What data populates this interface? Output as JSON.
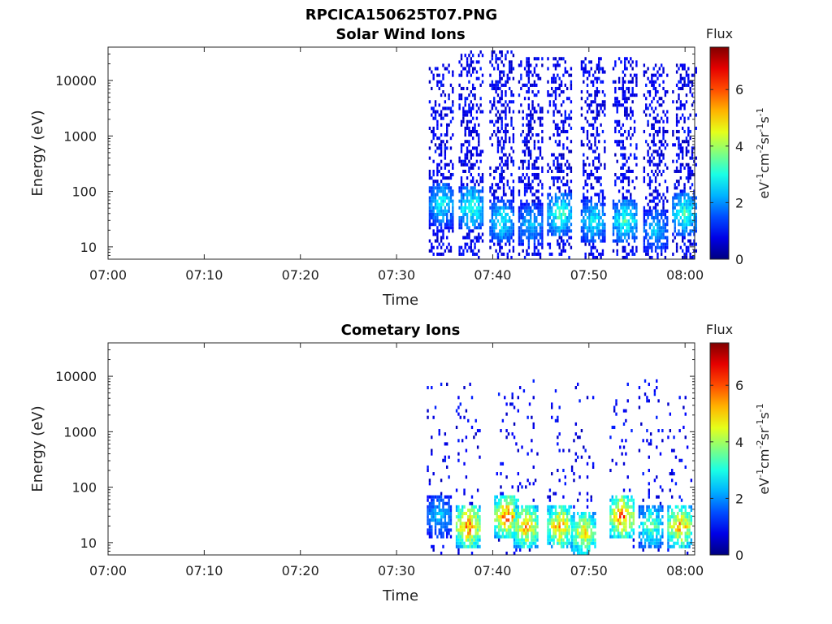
{
  "figure": {
    "filename": "RPCICA150625T07.PNG"
  },
  "colorbar": {
    "title": "Flux",
    "ticks": [
      "0",
      "2",
      "4",
      "6"
    ],
    "range": [
      0,
      7.5
    ],
    "unit_parts": [
      "eV",
      "-1",
      "cm",
      "-2",
      "sr",
      "-1",
      "s",
      "-1"
    ],
    "colormap": "jet"
  },
  "chart_data": [
    {
      "type": "heatmap",
      "title": "Solar Wind Ions",
      "xlabel": "Time",
      "ylabel": "Energy (eV)",
      "x_ticks": [
        "07:00",
        "07:10",
        "07:20",
        "07:30",
        "07:40",
        "07:50",
        "08:00"
      ],
      "xlim_minutes": [
        0,
        61
      ],
      "y_ticks": [
        "10",
        "100",
        "1000",
        "10000"
      ],
      "ylim": [
        6,
        40000
      ],
      "yscale": "log",
      "bursts": [
        {
          "t": 34.7,
          "e_lo": 7,
          "e_hi": 20000,
          "peak_e": 60,
          "peak_flux": 3.5,
          "low_flux": 1.0
        },
        {
          "t": 37.8,
          "e_lo": 6,
          "e_hi": 35000,
          "peak_e": 50,
          "peak_flux": 4.0,
          "low_flux": 1.0
        },
        {
          "t": 41.0,
          "e_lo": 6,
          "e_hi": 35000,
          "peak_e": 30,
          "peak_flux": 3.5,
          "low_flux": 1.0
        },
        {
          "t": 44.0,
          "e_lo": 6,
          "e_hi": 25000,
          "peak_e": 25,
          "peak_flux": 3.0,
          "low_flux": 1.0
        },
        {
          "t": 47.0,
          "e_lo": 6,
          "e_hi": 25000,
          "peak_e": 40,
          "peak_flux": 4.0,
          "low_flux": 1.0
        },
        {
          "t": 50.5,
          "e_lo": 6,
          "e_hi": 25000,
          "peak_e": 30,
          "peak_flux": 3.5,
          "low_flux": 1.0
        },
        {
          "t": 53.8,
          "e_lo": 6,
          "e_hi": 25000,
          "peak_e": 30,
          "peak_flux": 4.0,
          "low_flux": 1.0
        },
        {
          "t": 57.0,
          "e_lo": 6,
          "e_hi": 20000,
          "peak_e": 20,
          "peak_flux": 3.0,
          "low_flux": 1.0
        },
        {
          "t": 60.0,
          "e_lo": 6,
          "e_hi": 20000,
          "peak_e": 40,
          "peak_flux": 4.0,
          "low_flux": 1.0
        }
      ]
    },
    {
      "type": "heatmap",
      "title": "Cometary Ions",
      "xlabel": "Time",
      "ylabel": "Energy (eV)",
      "x_ticks": [
        "07:00",
        "07:10",
        "07:20",
        "07:30",
        "07:40",
        "07:50",
        "08:00"
      ],
      "xlim_minutes": [
        0,
        61
      ],
      "y_ticks": [
        "10",
        "100",
        "1000",
        "10000"
      ],
      "ylim": [
        6,
        40000
      ],
      "yscale": "log",
      "bursts": [
        {
          "t": 34.5,
          "e_lo": 6,
          "e_hi": 8000,
          "peak_e": 30,
          "peak_flux": 3.0,
          "low_flux": 1.0
        },
        {
          "t": 37.5,
          "e_lo": 6,
          "e_hi": 8000,
          "peak_e": 20,
          "peak_flux": 7.0,
          "low_flux": 1.0
        },
        {
          "t": 41.5,
          "e_lo": 6,
          "e_hi": 6000,
          "peak_e": 30,
          "peak_flux": 7.0,
          "low_flux": 1.0
        },
        {
          "t": 43.5,
          "e_lo": 6,
          "e_hi": 9000,
          "peak_e": 20,
          "peak_flux": 6.5,
          "low_flux": 1.0
        },
        {
          "t": 47.0,
          "e_lo": 6,
          "e_hi": 6000,
          "peak_e": 20,
          "peak_flux": 6.5,
          "low_flux": 1.0
        },
        {
          "t": 49.5,
          "e_lo": 6,
          "e_hi": 9000,
          "peak_e": 15,
          "peak_flux": 6.0,
          "low_flux": 1.0
        },
        {
          "t": 53.5,
          "e_lo": 6,
          "e_hi": 8000,
          "peak_e": 30,
          "peak_flux": 7.0,
          "low_flux": 1.0
        },
        {
          "t": 56.5,
          "e_lo": 6,
          "e_hi": 10000,
          "peak_e": 20,
          "peak_flux": 4.5,
          "low_flux": 1.0
        },
        {
          "t": 59.5,
          "e_lo": 6,
          "e_hi": 6000,
          "peak_e": 20,
          "peak_flux": 6.5,
          "low_flux": 1.0
        }
      ]
    }
  ]
}
